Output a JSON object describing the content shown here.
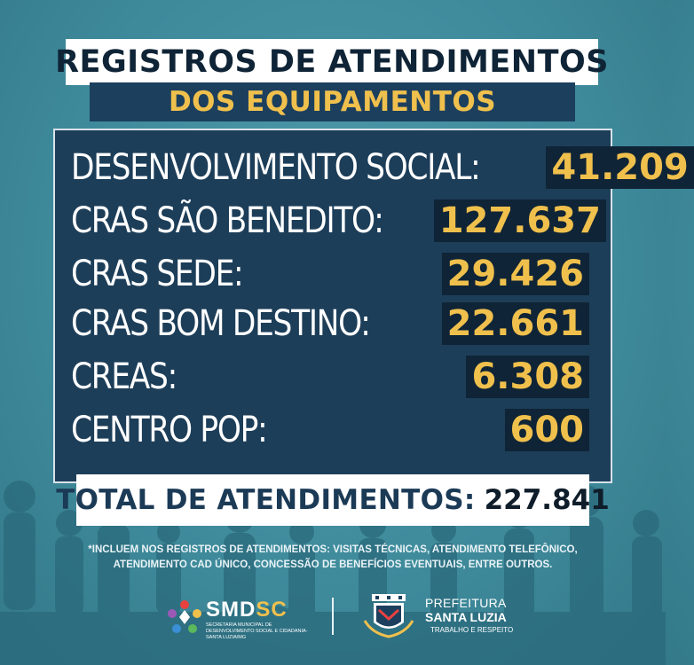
{
  "header": {
    "title": "REGISTROS DE ATENDIMENTOS",
    "subtitle": "DOS EQUIPAMENTOS"
  },
  "rows": [
    {
      "label": "DESENVOLVIMENTO SOCIAL:",
      "value": "41.209"
    },
    {
      "label": "CRAS SÃO BENEDITO:",
      "value": "127.637"
    },
    {
      "label": "CRAS SEDE:",
      "value": "29.426"
    },
    {
      "label": "CRAS BOM DESTINO:",
      "value": "22.661"
    },
    {
      "label": "CREAS:",
      "value": "6.308"
    },
    {
      "label": "CENTRO POP:",
      "value": "600"
    }
  ],
  "total": {
    "label": "TOTAL DE ATENDIMENTOS:",
    "value": "227.841"
  },
  "footnote": {
    "line1": "*INCLUEM NOS REGISTROS DE ATENDIMENTOS: VISITAS TÉCNICAS, ATENDIMENTO TELEFÔNICO,",
    "line2": "ATENDIMENTO CAD ÚNICO, CONCESSÃO DE BENEFÍCIOS EVENTUAIS, ENTRE OUTROS."
  },
  "logos": {
    "smdsc": {
      "name_a": "SMD",
      "name_b": "SC",
      "sub": "SECRETARIA MUNICIPAL DE DESENVOLVIMENTO SOCIAL E CIDADANIA-SANTA LUZIA/MG"
    },
    "prefeitura": {
      "line1": "PREFEITURA",
      "line2": "SANTA LUZIA",
      "tagline": "TRABALHO E RESPEITO"
    }
  },
  "colors": {
    "background": "#3f8b9c",
    "panel": "#1d3e59",
    "accent_gold": "#f0c04d",
    "dark_navy": "#0f2436"
  },
  "icons": [
    "smdsc-logo-icon",
    "santa-luzia-crest-icon"
  ]
}
